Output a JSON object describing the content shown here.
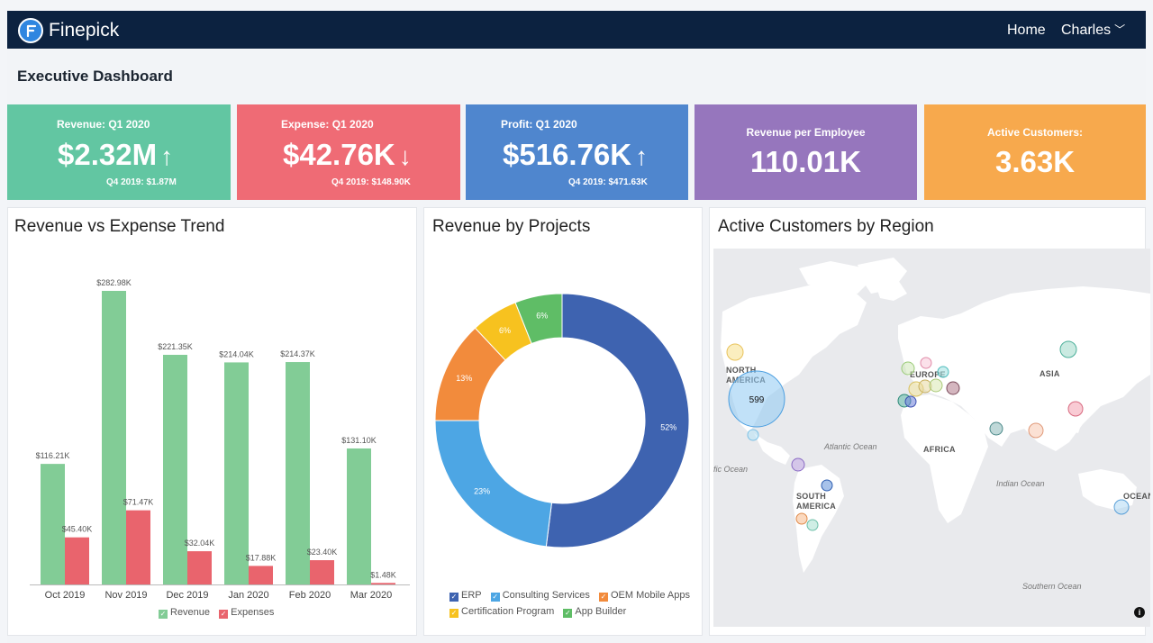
{
  "app": {
    "brand": "Finepick",
    "nav_home": "Home",
    "user_name": "Charles"
  },
  "page": {
    "title": "Executive Dashboard"
  },
  "kpis": [
    {
      "label": "Revenue: Q1 2020",
      "value": "$2.32M",
      "arrow": "↑",
      "prev": "Q4 2019: $1.87M",
      "color": "#62c6a2"
    },
    {
      "label": "Expense: Q1 2020",
      "value": "$42.76K",
      "arrow": "↓",
      "prev": "Q4 2019: $148.90K",
      "color": "#ef6b75"
    },
    {
      "label": "Profit: Q1 2020",
      "value": "$516.76K",
      "arrow": "↑",
      "prev": "Q4 2019: $471.63K",
      "color": "#4f86ce"
    },
    {
      "label": "Revenue per Employee",
      "value": "110.01K",
      "color": "#9676bd"
    },
    {
      "label": "Active Customers:",
      "value": "3.63K",
      "color": "#f7a94d"
    }
  ],
  "cards": {
    "trend_title": "Revenue vs Expense Trend",
    "projects_title": "Revenue by Projects",
    "region_title": "Active Customers by Region"
  },
  "chart_data": [
    {
      "type": "bar",
      "title": "Revenue vs Expense Trend",
      "categories": [
        "Oct 2019",
        "Nov 2019",
        "Dec 2019",
        "Jan 2020",
        "Feb 2020",
        "Mar 2020"
      ],
      "series": [
        {
          "name": "Revenue",
          "values": [
            116.21,
            282.98,
            221.35,
            214.04,
            214.37,
            131.1
          ],
          "labels": [
            "$116.21K",
            "$282.98K",
            "$221.35K",
            "$214.04K",
            "$214.37K",
            "$131.10K"
          ],
          "color": "#82cc96"
        },
        {
          "name": "Expenses",
          "values": [
            45.4,
            71.47,
            32.04,
            17.88,
            23.4,
            1.48
          ],
          "labels": [
            "$45.40K",
            "$71.47K",
            "$32.04K",
            "$17.88K",
            "$23.40K",
            "$1.48K"
          ],
          "color": "#e9646d"
        }
      ],
      "ylim": [
        0,
        300
      ],
      "grid": false,
      "legend": "bottom"
    },
    {
      "type": "pie",
      "title": "Revenue by Projects",
      "donut": true,
      "slices": [
        {
          "name": "ERP",
          "value": 52,
          "label": "52%",
          "color": "#3e63b0"
        },
        {
          "name": "Consulting Services",
          "value": 23,
          "label": "23%",
          "color": "#4da6e4"
        },
        {
          "name": "OEM Mobile Apps",
          "value": 13,
          "label": "13%",
          "color": "#f28b3c"
        },
        {
          "name": "Certification Program",
          "value": 6,
          "label": "6%",
          "color": "#f7c21f"
        },
        {
          "name": "App Builder",
          "value": 6,
          "label": "6%",
          "color": "#5fbd66"
        }
      ],
      "legend": "bottom"
    }
  ],
  "map": {
    "labels": {
      "north_america": "NORTH AMERICA",
      "europe": "EUROPE",
      "asia": "ASIA",
      "africa": "AFRICA",
      "south_america": "SOUTH AMERICA",
      "atlantic": "Atlantic Ocean",
      "pacific": "fic Ocean",
      "indian": "Indian Ocean",
      "southern": "Southern Ocean",
      "oceania": "OCEANI"
    },
    "cluster_count": "599",
    "info": "i"
  }
}
